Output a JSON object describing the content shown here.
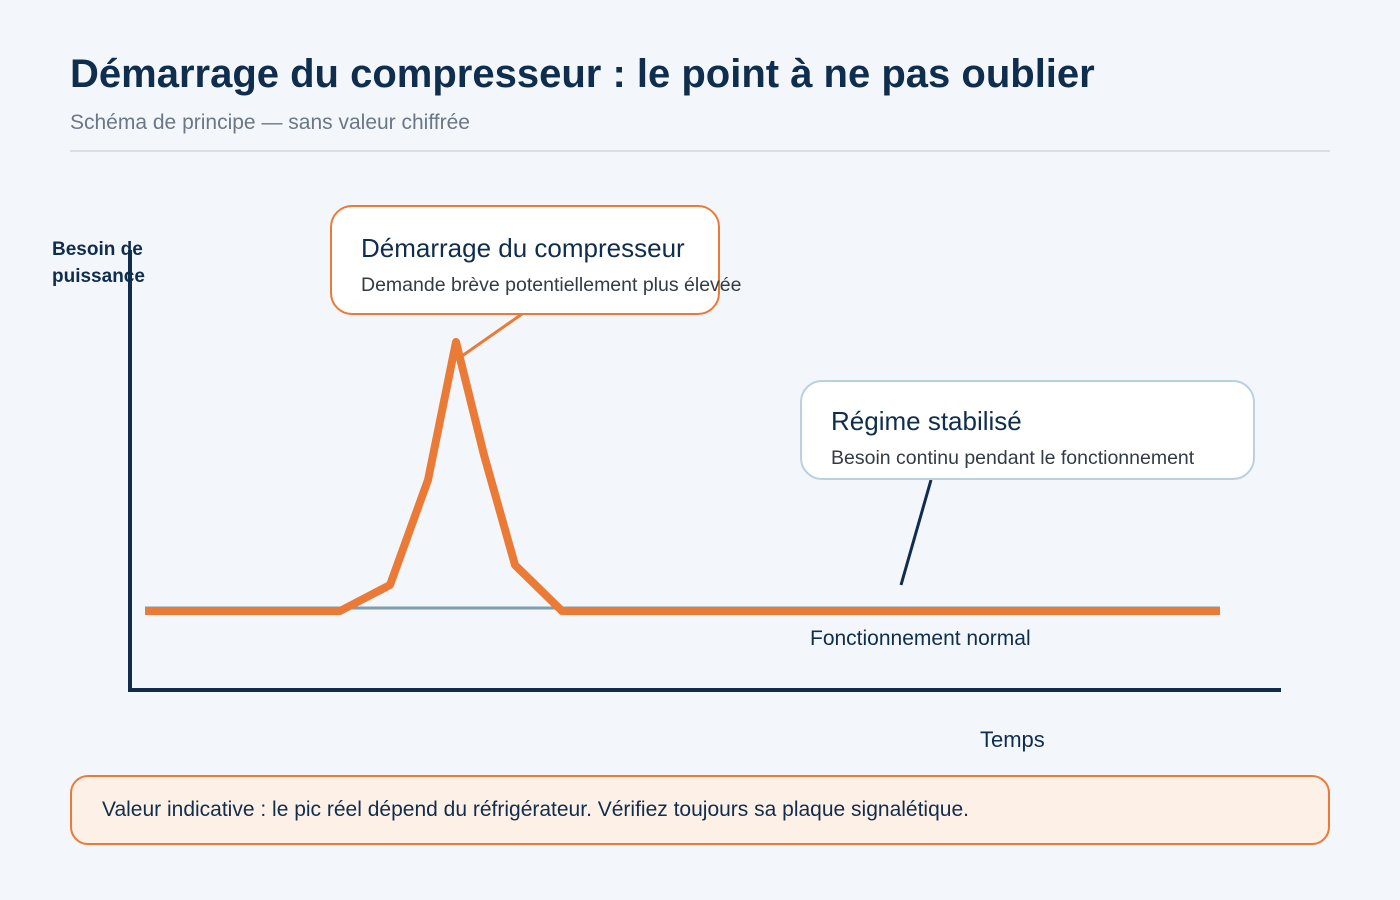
{
  "header": {
    "title": "Démarrage du compresseur : le point à ne pas oublier",
    "subtitle": "Schéma de principe — sans valeur chiffrée"
  },
  "axes": {
    "y_label": "Besoin de puissance",
    "x_label": "Temps"
  },
  "baseline_label": "Fonctionnement normal",
  "callouts": {
    "startup": {
      "title": "Démarrage du compresseur",
      "text": "Demande brève potentiellement plus élevée"
    },
    "steady": {
      "title": "Régime stabilisé",
      "text": "Besoin continu pendant le fonctionnement"
    }
  },
  "note": "Valeur indicative : le pic réel dépend du réfrigérateur. Vérifiez toujours sa plaque signalétique.",
  "colors": {
    "curve": "#ec7a37",
    "axis": "#0f2d4d",
    "baseline": "#7f9db2",
    "steady_border": "#b9d0df"
  }
}
